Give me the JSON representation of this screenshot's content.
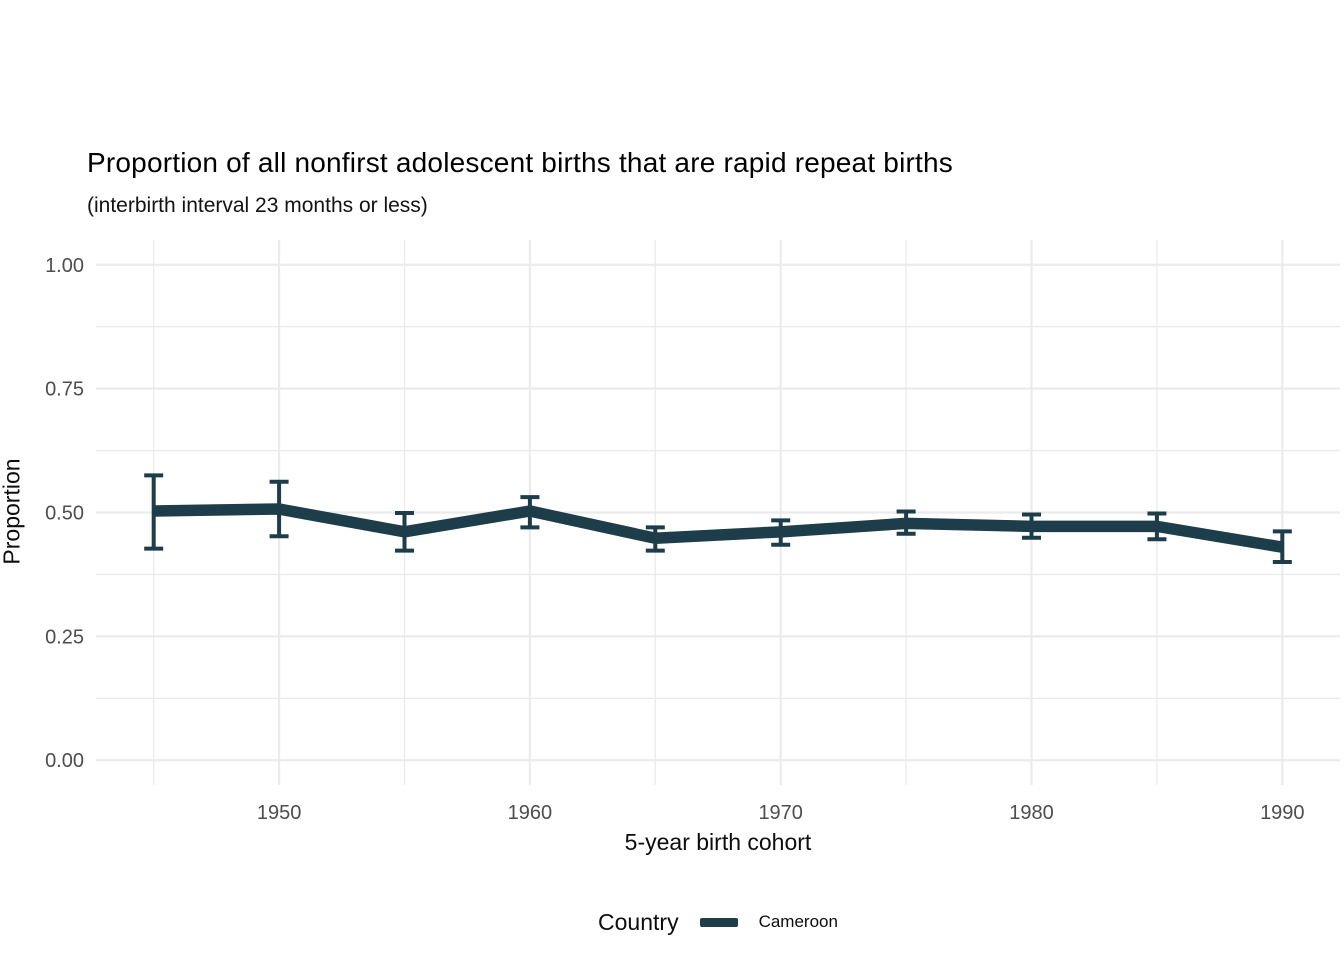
{
  "chart_data": {
    "type": "line",
    "title": "Proportion of all nonfirst adolescent births that are rapid repeat births",
    "subtitle": "(interbirth interval 23 months or less)",
    "xlabel": "5-year birth cohort",
    "ylabel": "Proportion",
    "x": [
      1945,
      1950,
      1955,
      1960,
      1965,
      1970,
      1975,
      1980,
      1985,
      1990
    ],
    "series": [
      {
        "name": "Cameroon",
        "color": "#1e3d4a",
        "values": [
          0.503,
          0.507,
          0.461,
          0.503,
          0.448,
          0.461,
          0.478,
          0.472,
          0.472,
          0.43
        ],
        "ci_lower": [
          0.427,
          0.452,
          0.423,
          0.47,
          0.423,
          0.435,
          0.457,
          0.449,
          0.446,
          0.4
        ],
        "ci_upper": [
          0.575,
          0.562,
          0.499,
          0.531,
          0.47,
          0.484,
          0.502,
          0.496,
          0.498,
          0.462
        ]
      }
    ],
    "xlim": [
      1942.7,
      1992.3
    ],
    "ylim": [
      -0.05,
      1.05
    ],
    "x_ticks": {
      "major": [
        1950,
        1960,
        1970,
        1980,
        1990
      ],
      "labels": [
        "1950",
        "1960",
        "1970",
        "1980",
        "1990"
      ],
      "minor": [
        1945,
        1955,
        1965,
        1975,
        1985
      ]
    },
    "y_ticks": {
      "major": [
        0.0,
        0.25,
        0.5,
        0.75,
        1.0
      ],
      "labels": [
        "0.00",
        "0.25",
        "0.50",
        "0.75",
        "1.00"
      ],
      "minor": [
        0.125,
        0.375,
        0.625,
        0.875
      ]
    },
    "grid": "on",
    "legend": {
      "title": "Country",
      "position": "bottom",
      "entries": [
        "Cameroon"
      ]
    }
  },
  "style": {
    "grid_color": "#ebebeb",
    "tick_label_color": "#4d4d4d",
    "line_color": "#1e3d4a",
    "background": "#ffffff"
  }
}
